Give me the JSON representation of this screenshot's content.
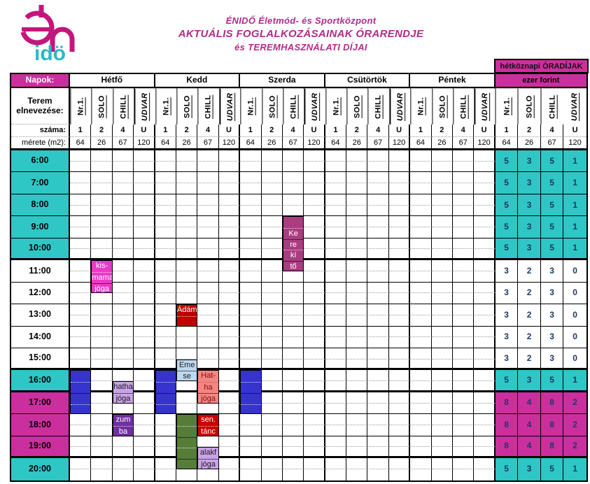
{
  "title": {
    "line1": "ÉNIDŐ Életmód- és Sportközpont",
    "line2": "AKTUÁLIS FOGLALKOZÁSAINAK ÓRARENDJE",
    "line3": "és TEREMHASZNÁLATI DÍJAI"
  },
  "logo": {
    "brand_bottom": "idö"
  },
  "rates": {
    "header": "hétköznapi ÓRADÍJAK",
    "subheader": "ezer forint",
    "values": {
      "day": [
        "5",
        "3",
        "5",
        "1"
      ],
      "mid": [
        "3",
        "2",
        "3",
        "0"
      ],
      "evening": [
        "8",
        "4",
        "8",
        "2"
      ]
    }
  },
  "table": {
    "napok_label": "Napok:",
    "room_label": "Terem elnevezése:",
    "number_label": "száma:",
    "size_label": "mérete (m2):",
    "days": [
      "Hétfő",
      "Kedd",
      "Szerda",
      "Csütörtök",
      "Péntek"
    ],
    "rooms": [
      "Nr.1.",
      "SOLO",
      "CHILL",
      "UDVAR"
    ],
    "room_numbers": [
      "1",
      "2",
      "4",
      "U"
    ],
    "room_sizes": [
      "64",
      "26",
      "67",
      "120"
    ],
    "times": [
      "6:00",
      "7:00",
      "8:00",
      "9:00",
      "10:00",
      "11:00",
      "12:00",
      "13:00",
      "14:00",
      "15:00",
      "16:00",
      "17:00",
      "18:00",
      "19:00",
      "20:00"
    ],
    "hour_types": [
      "day",
      "day",
      "day",
      "day",
      "day",
      "mid",
      "mid",
      "mid",
      "mid",
      "mid",
      "day",
      "evening",
      "evening",
      "evening",
      "day"
    ],
    "events": [
      {
        "name": "kismama-joga",
        "day": 0,
        "room": 1,
        "start": 10,
        "span": 3,
        "bg": "#e83bc8",
        "fg": "#ffffff",
        "lines": [
          "kis-",
          "mama",
          "jóga"
        ]
      },
      {
        "name": "reserved-blue-monday",
        "day": 0,
        "room": 0,
        "start": 20,
        "span": 4,
        "bg": "#3633cf",
        "fg": "#ffffff",
        "lines": []
      },
      {
        "name": "hatha-joga-monday",
        "day": 0,
        "room": 2,
        "start": 21,
        "span": 2,
        "bg": "#c9a3e8",
        "fg": "#1a1a1a",
        "lines": [
          "hatha",
          "jóga"
        ]
      },
      {
        "name": "zumba",
        "day": 0,
        "room": 2,
        "start": 24,
        "span": 2,
        "bg": "#7030a0",
        "fg": "#ffffff",
        "lines": [
          "zum",
          "ba"
        ]
      },
      {
        "name": "adam",
        "day": 1,
        "room": 1,
        "start": 14,
        "span": 2,
        "bg": "#c00000",
        "fg": "#ffffff",
        "lines": [
          "Ádám"
        ]
      },
      {
        "name": "emese",
        "day": 1,
        "room": 1,
        "start": 19,
        "span": 2,
        "bg": "#bdd7ee",
        "fg": "#222222",
        "lines": [
          "Eme",
          "se"
        ]
      },
      {
        "name": "reserved-blue-tuesday",
        "day": 1,
        "room": 0,
        "start": 20,
        "span": 4,
        "bg": "#3633cf",
        "fg": "#ffffff",
        "lines": []
      },
      {
        "name": "reserved-green-tuesday",
        "day": 1,
        "room": 1,
        "start": 24,
        "span": 5,
        "bg": "#567d38",
        "fg": "#ffffff",
        "lines": []
      },
      {
        "name": "hatha-joga-tuesday",
        "day": 1,
        "room": 2,
        "start": 20,
        "span": 3,
        "bg": "#f48580",
        "fg": "#7d1212",
        "lines": [
          "Hat-",
          "ha",
          "jóga"
        ]
      },
      {
        "name": "senior-tanc",
        "day": 1,
        "room": 2,
        "start": 24,
        "span": 2,
        "bg": "#cc0000",
        "fg": "#ffffff",
        "lines": [
          "sen.",
          "tánc"
        ]
      },
      {
        "name": "alakformalo-joga",
        "day": 1,
        "room": 2,
        "start": 27,
        "span": 2,
        "bg": "#c9a3e8",
        "fg": "#1a1a1a",
        "lines": [
          "alakf",
          "jóga"
        ]
      },
      {
        "name": "kerekito",
        "day": 2,
        "room": 2,
        "start": 6,
        "span": 5,
        "bg": "#aa3c80",
        "fg": "#ffffff",
        "lines": [
          "",
          "Ke",
          "re",
          "kí",
          "tő"
        ]
      },
      {
        "name": "reserved-blue-wednesday",
        "day": 2,
        "room": 0,
        "start": 20,
        "span": 4,
        "bg": "#3633cf",
        "fg": "#ffffff",
        "lines": []
      }
    ]
  },
  "colors": {
    "teal": "#2fc6c6",
    "magenta": "#cb2f9e",
    "title_magenta": "#b12a88"
  }
}
